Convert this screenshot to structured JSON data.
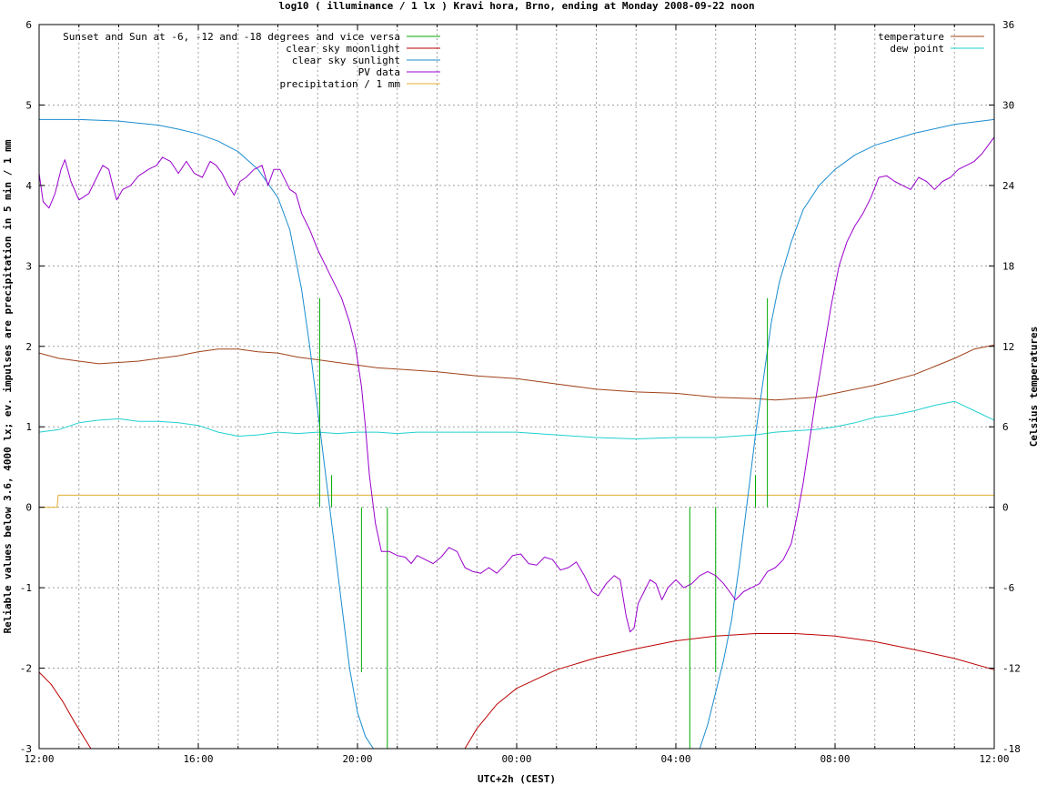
{
  "chart_data": {
    "type": "line",
    "title": "log10 ( illuminance / 1 lx ) Kravi hora, Brno, ending at Monday 2008-09-22 noon",
    "xlabel": "UTC+2h (CEST)",
    "ylabel": "Reliable values below 3.6, 4000 lx; ev. impulses are precipitation in 5 min / 1 mm",
    "y2label": "Celsius temperatures",
    "x_range_hours": [
      0,
      24
    ],
    "ylim": [
      -3,
      6
    ],
    "y2lim": [
      -18,
      36
    ],
    "x_ticks": [
      "12:00",
      "16:00",
      "20:00",
      "00:00",
      "04:00",
      "08:00",
      "12:00"
    ],
    "y_ticks": [
      "-3",
      "-2",
      "-1",
      "0",
      "1",
      "2",
      "3",
      "4",
      "5",
      "6"
    ],
    "y2_ticks": [
      "-18",
      "-12",
      "-6",
      "0",
      "6",
      "12",
      "18",
      "24",
      "30",
      "36"
    ],
    "grid": true,
    "legend_left": [
      {
        "label": "Sunset and Sun at -6, -12 and -18 degrees and vice versa",
        "color": "#00aa00"
      },
      {
        "label": "clear sky moonlight",
        "color": "#bb0000"
      },
      {
        "label": "clear sky sunlight",
        "color": "#1a8cd0"
      },
      {
        "label": "PV data",
        "color": "#9900cc"
      },
      {
        "label": "precipitation / 1 mm",
        "color": "#e0b030"
      }
    ],
    "legend_right": [
      {
        "label": "temperature",
        "color": "#a0421a"
      },
      {
        "label": "dew point",
        "color": "#22d0d0"
      }
    ],
    "series": {
      "sunlight": [
        [
          0,
          4.82
        ],
        [
          1,
          4.82
        ],
        [
          2,
          4.8
        ],
        [
          3,
          4.75
        ],
        [
          3.5,
          4.7
        ],
        [
          4,
          4.64
        ],
        [
          4.5,
          4.55
        ],
        [
          5,
          4.42
        ],
        [
          5.5,
          4.2
        ],
        [
          6,
          3.85
        ],
        [
          6.3,
          3.45
        ],
        [
          6.6,
          2.7
        ],
        [
          6.8,
          2.0
        ],
        [
          7.0,
          1.2
        ],
        [
          7.2,
          0.4
        ],
        [
          7.4,
          -0.4
        ],
        [
          7.6,
          -1.2
        ],
        [
          7.8,
          -2.0
        ],
        [
          8.0,
          -2.55
        ],
        [
          8.2,
          -2.85
        ],
        [
          8.4,
          -3.0
        ]
      ],
      "sunlight_morning": [
        [
          16.6,
          -3.0
        ],
        [
          16.8,
          -2.7
        ],
        [
          17.0,
          -2.3
        ],
        [
          17.2,
          -1.9
        ],
        [
          17.4,
          -1.4
        ],
        [
          17.6,
          -0.7
        ],
        [
          17.8,
          0.1
        ],
        [
          18.0,
          0.9
        ],
        [
          18.2,
          1.6
        ],
        [
          18.4,
          2.3
        ],
        [
          18.6,
          2.8
        ],
        [
          18.9,
          3.3
        ],
        [
          19.2,
          3.7
        ],
        [
          19.6,
          4.0
        ],
        [
          20,
          4.2
        ],
        [
          20.5,
          4.38
        ],
        [
          21,
          4.5
        ],
        [
          22,
          4.65
        ],
        [
          23,
          4.76
        ],
        [
          24,
          4.82
        ]
      ],
      "moonlight_evening": [
        [
          0,
          -2.05
        ],
        [
          0.3,
          -2.2
        ],
        [
          0.6,
          -2.42
        ],
        [
          0.9,
          -2.68
        ],
        [
          1.2,
          -2.92
        ],
        [
          1.3,
          -3.0
        ]
      ],
      "moonlight_night": [
        [
          10.7,
          -3.0
        ],
        [
          11.0,
          -2.75
        ],
        [
          11.5,
          -2.45
        ],
        [
          12.0,
          -2.25
        ],
        [
          13,
          -2.02
        ],
        [
          14,
          -1.87
        ],
        [
          15,
          -1.76
        ],
        [
          16,
          -1.66
        ],
        [
          17,
          -1.6
        ],
        [
          18,
          -1.57
        ],
        [
          19,
          -1.57
        ],
        [
          20,
          -1.6
        ],
        [
          21,
          -1.67
        ],
        [
          22,
          -1.77
        ],
        [
          23,
          -1.88
        ],
        [
          24,
          -2.02
        ]
      ],
      "pv": [
        [
          0,
          4.15
        ],
        [
          0.1,
          3.8
        ],
        [
          0.25,
          3.72
        ],
        [
          0.4,
          3.9
        ],
        [
          0.55,
          4.2
        ],
        [
          0.65,
          4.32
        ],
        [
          0.8,
          4.05
        ],
        [
          1,
          3.82
        ],
        [
          1.25,
          3.9
        ],
        [
          1.45,
          4.1
        ],
        [
          1.6,
          4.25
        ],
        [
          1.75,
          4.2
        ],
        [
          1.85,
          4.0
        ],
        [
          1.95,
          3.82
        ],
        [
          2.1,
          3.95
        ],
        [
          2.3,
          4.0
        ],
        [
          2.5,
          4.12
        ],
        [
          2.75,
          4.2
        ],
        [
          2.95,
          4.25
        ],
        [
          3.1,
          4.35
        ],
        [
          3.3,
          4.3
        ],
        [
          3.5,
          4.15
        ],
        [
          3.7,
          4.3
        ],
        [
          3.9,
          4.15
        ],
        [
          4.1,
          4.1
        ],
        [
          4.3,
          4.3
        ],
        [
          4.45,
          4.25
        ],
        [
          4.6,
          4.15
        ],
        [
          4.75,
          4.0
        ],
        [
          4.9,
          3.88
        ],
        [
          5.05,
          4.05
        ],
        [
          5.2,
          4.1
        ],
        [
          5.4,
          4.2
        ],
        [
          5.6,
          4.25
        ],
        [
          5.75,
          4.0
        ],
        [
          5.9,
          4.2
        ],
        [
          6.05,
          4.2
        ],
        [
          6.3,
          3.95
        ],
        [
          6.45,
          3.9
        ],
        [
          6.6,
          3.65
        ],
        [
          6.8,
          3.45
        ],
        [
          7.0,
          3.2
        ],
        [
          7.3,
          2.9
        ],
        [
          7.6,
          2.6
        ],
        [
          7.8,
          2.3
        ],
        [
          7.95,
          2.0
        ],
        [
          8.1,
          1.5
        ],
        [
          8.2,
          1.0
        ],
        [
          8.3,
          0.4
        ],
        [
          8.45,
          -0.2
        ],
        [
          8.6,
          -0.55
        ],
        [
          8.8,
          -0.55
        ],
        [
          9.0,
          -0.6
        ],
        [
          9.2,
          -0.62
        ],
        [
          9.35,
          -0.7
        ],
        [
          9.5,
          -0.6
        ],
        [
          9.7,
          -0.65
        ],
        [
          9.9,
          -0.7
        ],
        [
          10.1,
          -0.62
        ],
        [
          10.3,
          -0.5
        ],
        [
          10.5,
          -0.55
        ],
        [
          10.7,
          -0.75
        ],
        [
          10.9,
          -0.8
        ],
        [
          11.1,
          -0.82
        ],
        [
          11.3,
          -0.75
        ],
        [
          11.5,
          -0.82
        ],
        [
          11.7,
          -0.72
        ],
        [
          11.9,
          -0.6
        ],
        [
          12.1,
          -0.58
        ],
        [
          12.3,
          -0.7
        ],
        [
          12.5,
          -0.72
        ],
        [
          12.7,
          -0.62
        ],
        [
          12.9,
          -0.65
        ],
        [
          13.1,
          -0.78
        ],
        [
          13.3,
          -0.75
        ],
        [
          13.5,
          -0.68
        ],
        [
          13.7,
          -0.85
        ],
        [
          13.9,
          -1.05
        ],
        [
          14.05,
          -1.1
        ],
        [
          14.25,
          -0.95
        ],
        [
          14.45,
          -0.85
        ],
        [
          14.6,
          -0.9
        ],
        [
          14.75,
          -1.35
        ],
        [
          14.85,
          -1.55
        ],
        [
          14.95,
          -1.5
        ],
        [
          15.05,
          -1.2
        ],
        [
          15.2,
          -1.05
        ],
        [
          15.35,
          -0.9
        ],
        [
          15.5,
          -0.95
        ],
        [
          15.65,
          -1.15
        ],
        [
          15.8,
          -1.0
        ],
        [
          16.0,
          -0.9
        ],
        [
          16.2,
          -1.0
        ],
        [
          16.4,
          -0.95
        ],
        [
          16.6,
          -0.85
        ],
        [
          16.8,
          -0.8
        ],
        [
          17.0,
          -0.85
        ],
        [
          17.2,
          -0.95
        ],
        [
          17.35,
          -1.05
        ],
        [
          17.5,
          -1.15
        ],
        [
          17.7,
          -1.05
        ],
        [
          17.9,
          -1.0
        ],
        [
          18.1,
          -0.95
        ],
        [
          18.3,
          -0.8
        ],
        [
          18.5,
          -0.75
        ],
        [
          18.7,
          -0.65
        ],
        [
          18.9,
          -0.45
        ],
        [
          19.05,
          -0.1
        ],
        [
          19.2,
          0.3
        ],
        [
          19.35,
          0.8
        ],
        [
          19.5,
          1.3
        ],
        [
          19.7,
          1.9
        ],
        [
          19.9,
          2.5
        ],
        [
          20.1,
          3.0
        ],
        [
          20.3,
          3.3
        ],
        [
          20.5,
          3.5
        ],
        [
          20.7,
          3.65
        ],
        [
          20.9,
          3.85
        ],
        [
          21.1,
          4.1
        ],
        [
          21.3,
          4.12
        ],
        [
          21.5,
          4.05
        ],
        [
          21.7,
          4.0
        ],
        [
          21.9,
          3.95
        ],
        [
          22.1,
          4.1
        ],
        [
          22.3,
          4.05
        ],
        [
          22.5,
          3.95
        ],
        [
          22.7,
          4.05
        ],
        [
          22.9,
          4.1
        ],
        [
          23.1,
          4.2
        ],
        [
          23.3,
          4.25
        ],
        [
          23.5,
          4.3
        ],
        [
          23.7,
          4.4
        ],
        [
          23.85,
          4.5
        ],
        [
          24,
          4.6
        ],
        [
          24.15,
          4.55
        ],
        [
          24.3,
          4.4
        ],
        [
          24.45,
          4.45
        ],
        [
          24.6,
          4.5
        ],
        [
          24.75,
          4.4
        ],
        [
          24.9,
          4.5
        ],
        [
          25.05,
          4.7
        ],
        [
          25.15,
          4.45
        ],
        [
          25.3,
          4.35
        ],
        [
          25.45,
          4.25
        ],
        [
          25.6,
          4.15
        ],
        [
          25.75,
          4.05
        ]
      ],
      "temperature": [
        [
          0,
          11.5
        ],
        [
          0.5,
          11.1
        ],
        [
          1,
          10.9
        ],
        [
          1.5,
          10.7
        ],
        [
          2,
          10.8
        ],
        [
          2.5,
          10.9
        ],
        [
          3,
          11.1
        ],
        [
          3.5,
          11.3
        ],
        [
          4,
          11.6
        ],
        [
          4.5,
          11.8
        ],
        [
          5,
          11.8
        ],
        [
          5.5,
          11.6
        ],
        [
          6,
          11.5
        ],
        [
          6.5,
          11.2
        ],
        [
          7,
          11.0
        ],
        [
          7.5,
          10.8
        ],
        [
          8,
          10.6
        ],
        [
          8.5,
          10.4
        ],
        [
          9,
          10.3
        ],
        [
          10,
          10.1
        ],
        [
          11,
          9.8
        ],
        [
          12,
          9.6
        ],
        [
          13,
          9.2
        ],
        [
          14,
          8.8
        ],
        [
          15,
          8.6
        ],
        [
          16,
          8.5
        ],
        [
          17,
          8.2
        ],
        [
          18,
          8.1
        ],
        [
          18.5,
          8.0
        ],
        [
          19,
          8.1
        ],
        [
          19.5,
          8.2
        ],
        [
          20,
          8.5
        ],
        [
          20.5,
          8.8
        ],
        [
          21,
          9.1
        ],
        [
          21.5,
          9.5
        ],
        [
          22,
          9.9
        ],
        [
          22.5,
          10.5
        ],
        [
          23,
          11.1
        ],
        [
          23.5,
          11.8
        ],
        [
          24,
          12.1
        ]
      ],
      "dewpoint": [
        [
          0,
          5.6
        ],
        [
          0.5,
          5.8
        ],
        [
          1,
          6.3
        ],
        [
          1.5,
          6.5
        ],
        [
          2,
          6.6
        ],
        [
          2.5,
          6.4
        ],
        [
          3,
          6.4
        ],
        [
          3.5,
          6.3
        ],
        [
          4,
          6.1
        ],
        [
          4.5,
          5.6
        ],
        [
          5,
          5.3
        ],
        [
          5.5,
          5.4
        ],
        [
          6,
          5.6
        ],
        [
          6.5,
          5.5
        ],
        [
          7,
          5.6
        ],
        [
          7.5,
          5.5
        ],
        [
          8,
          5.6
        ],
        [
          8.5,
          5.6
        ],
        [
          9,
          5.5
        ],
        [
          9.5,
          5.6
        ],
        [
          10,
          5.6
        ],
        [
          11,
          5.6
        ],
        [
          12,
          5.6
        ],
        [
          13,
          5.4
        ],
        [
          14,
          5.2
        ],
        [
          15,
          5.1
        ],
        [
          16,
          5.2
        ],
        [
          17,
          5.2
        ],
        [
          17.5,
          5.3
        ],
        [
          18,
          5.4
        ],
        [
          18.5,
          5.6
        ],
        [
          19,
          5.7
        ],
        [
          19.5,
          5.8
        ],
        [
          20,
          6.0
        ],
        [
          20.5,
          6.3
        ],
        [
          21,
          6.7
        ],
        [
          21.5,
          6.9
        ],
        [
          22,
          7.2
        ],
        [
          22.5,
          7.6
        ],
        [
          23,
          7.9
        ],
        [
          23.5,
          7.2
        ],
        [
          24,
          6.5
        ]
      ],
      "precipitation": [
        [
          0,
          0
        ],
        [
          0.45,
          0
        ],
        [
          0.48,
          0.15
        ],
        [
          24,
          0.15
        ]
      ],
      "sun_impulses": [
        {
          "x": 7.05,
          "y": 2.6
        },
        {
          "x": 7.35,
          "y": 0.4
        },
        {
          "x": 8.1,
          "y": -2.05
        },
        {
          "x": 8.75,
          "y": -3.0
        },
        {
          "x": 16.35,
          "y": -3.0
        },
        {
          "x": 17.0,
          "y": -2.05
        },
        {
          "x": 18.0,
          "y": 0.4
        },
        {
          "x": 18.3,
          "y": 2.6
        }
      ]
    }
  }
}
